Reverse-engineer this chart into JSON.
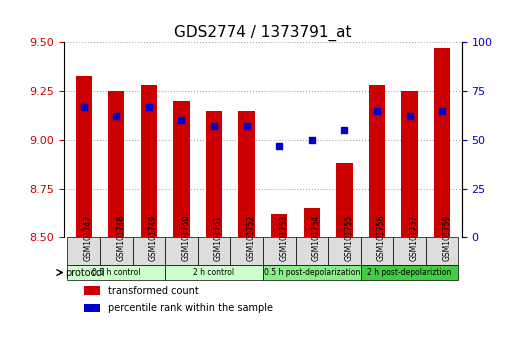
{
  "title": "GDS2774 / 1373791_at",
  "samples": [
    "GSM101747",
    "GSM101748",
    "GSM101749",
    "GSM101750",
    "GSM101751",
    "GSM101752",
    "GSM101753",
    "GSM101754",
    "GSM101755",
    "GSM101756",
    "GSM101757",
    "GSM101759"
  ],
  "bar_values": [
    9.33,
    9.25,
    9.28,
    9.2,
    9.15,
    9.15,
    8.62,
    8.65,
    8.88,
    9.28,
    9.25,
    9.47
  ],
  "dot_values": [
    67,
    62,
    67,
    60,
    57,
    57,
    47,
    50,
    55,
    65,
    62,
    65
  ],
  "ymin": 8.5,
  "ymax": 9.5,
  "y2min": 0,
  "y2max": 100,
  "yticks": [
    8.5,
    8.75,
    9.0,
    9.25,
    9.5
  ],
  "y2ticks": [
    0,
    25,
    50,
    75,
    100
  ],
  "bar_color": "#cc0000",
  "dot_color": "#0000cc",
  "bar_bottom": 8.5,
  "protocol_groups": [
    {
      "label": "0.5 h control",
      "start": 0,
      "end": 2,
      "color": "#ccffcc"
    },
    {
      "label": "2 h control",
      "start": 3,
      "end": 5,
      "color": "#ccffcc"
    },
    {
      "label": "0.5 h post-depolarization",
      "start": 6,
      "end": 8,
      "color": "#88ee88"
    },
    {
      "label": "2 h post-depolariztion",
      "start": 9,
      "end": 11,
      "color": "#44cc44"
    }
  ],
  "legend_items": [
    {
      "label": "transformed count",
      "color": "#cc0000"
    },
    {
      "label": "percentile rank within the sample",
      "color": "#0000cc"
    }
  ],
  "protocol_label": "protocol",
  "grid_color": "#aaaaaa",
  "tick_color_left": "#cc0000",
  "tick_color_right": "#0000cc",
  "background_plot": "#ffffff",
  "background_sample": "#dddddd"
}
